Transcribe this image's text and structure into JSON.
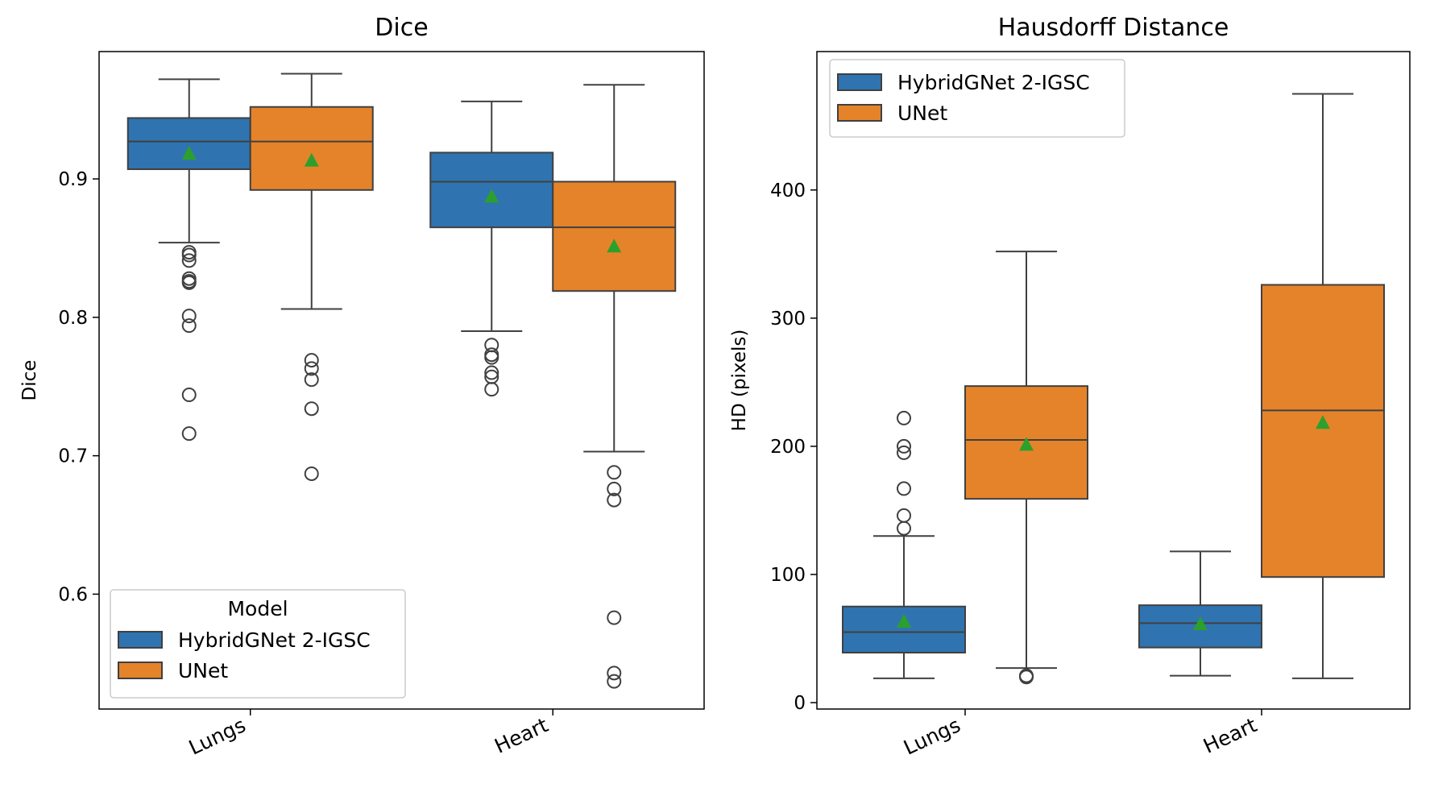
{
  "colors": {
    "HybridGNet 2-IGSC": "#2f74b0",
    "UNet": "#e5832a",
    "mean_marker": "#2ca02c",
    "lines": "#404040"
  },
  "chart_data": [
    {
      "type": "box",
      "title": "Dice",
      "xlabel": "",
      "ylabel": "Dice",
      "ylim": [
        0.517,
        0.992
      ],
      "yticks": [
        "0.6",
        "0.7",
        "0.8",
        "0.9"
      ],
      "categories": [
        "Lungs",
        "Heart"
      ],
      "legend": {
        "title": "Model",
        "placement": "lower-left",
        "entries": [
          "HybridGNet 2-IGSC",
          "UNet"
        ]
      },
      "series": [
        {
          "name": "HybridGNet 2-IGSC",
          "boxes": [
            {
              "category": "Lungs",
              "whisker_low": 0.854,
              "q1": 0.907,
              "median": 0.927,
              "q3": 0.944,
              "whisker_high": 0.972,
              "mean": 0.918,
              "outliers": [
                0.847,
                0.845,
                0.841,
                0.828,
                0.826,
                0.825,
                0.801,
                0.794,
                0.744,
                0.716
              ]
            },
            {
              "category": "Heart",
              "whisker_low": 0.79,
              "q1": 0.865,
              "median": 0.898,
              "q3": 0.919,
              "whisker_high": 0.956,
              "mean": 0.887,
              "outliers": [
                0.78,
                0.773,
                0.771,
                0.76,
                0.757,
                0.748
              ]
            }
          ]
        },
        {
          "name": "UNet",
          "boxes": [
            {
              "category": "Lungs",
              "whisker_low": 0.806,
              "q1": 0.892,
              "median": 0.927,
              "q3": 0.952,
              "whisker_high": 0.976,
              "mean": 0.913,
              "outliers": [
                0.769,
                0.763,
                0.755,
                0.734,
                0.687
              ]
            },
            {
              "category": "Heart",
              "whisker_low": 0.703,
              "q1": 0.819,
              "median": 0.865,
              "q3": 0.898,
              "whisker_high": 0.968,
              "mean": 0.851,
              "outliers": [
                0.688,
                0.676,
                0.668,
                0.583,
                0.543,
                0.537
              ]
            }
          ]
        }
      ]
    },
    {
      "type": "box",
      "title": "Hausdorff Distance",
      "xlabel": "",
      "ylabel": "HD (pixels)",
      "ylim": [
        -5,
        508
      ],
      "yticks": [
        "0",
        "100",
        "200",
        "300",
        "400"
      ],
      "categories": [
        "Lungs",
        "Heart"
      ],
      "legend": {
        "title": "",
        "placement": "upper-left",
        "entries": [
          "HybridGNet 2-IGSC",
          "UNet"
        ]
      },
      "series": [
        {
          "name": "HybridGNet 2-IGSC",
          "boxes": [
            {
              "category": "Lungs",
              "whisker_low": 19,
              "q1": 39,
              "median": 55,
              "q3": 75,
              "whisker_high": 130,
              "mean": 63,
              "outliers": [
                222,
                200,
                195,
                167,
                146,
                136
              ]
            },
            {
              "category": "Heart",
              "whisker_low": 21,
              "q1": 43,
              "median": 62,
              "q3": 76,
              "whisker_high": 118,
              "mean": 61,
              "outliers": []
            }
          ]
        },
        {
          "name": "UNet",
          "boxes": [
            {
              "category": "Lungs",
              "whisker_low": 27,
              "q1": 159,
              "median": 205,
              "q3": 247,
              "whisker_high": 352,
              "mean": 201,
              "outliers": [
                21,
                20
              ]
            },
            {
              "category": "Heart",
              "whisker_low": 19,
              "q1": 98,
              "median": 228,
              "q3": 326,
              "whisker_high": 475,
              "mean": 218,
              "outliers": []
            }
          ]
        }
      ]
    }
  ]
}
